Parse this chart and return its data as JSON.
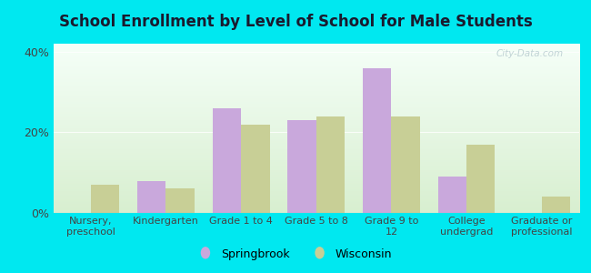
{
  "title": "School Enrollment by Level of School for Male Students",
  "categories": [
    "Nursery,\npreschool",
    "Kindergarten",
    "Grade 1 to 4",
    "Grade 5 to 8",
    "Grade 9 to\n12",
    "College\nundergrad",
    "Graduate or\nprofessional"
  ],
  "springbrook": [
    0,
    8,
    26,
    23,
    36,
    9,
    0
  ],
  "wisconsin": [
    7,
    6,
    22,
    24,
    24,
    17,
    4
  ],
  "springbrook_color": "#c9a8dc",
  "wisconsin_color": "#c8cf96",
  "outer_bg": "#00e8f0",
  "ylim": [
    0,
    42
  ],
  "yticks": [
    0,
    20,
    40
  ],
  "ytick_labels": [
    "0%",
    "20%",
    "40%"
  ],
  "legend_springbrook": "Springbrook",
  "legend_wisconsin": "Wisconsin",
  "bar_width": 0.38,
  "title_color": "#1a1a2e",
  "tick_color": "#444444"
}
